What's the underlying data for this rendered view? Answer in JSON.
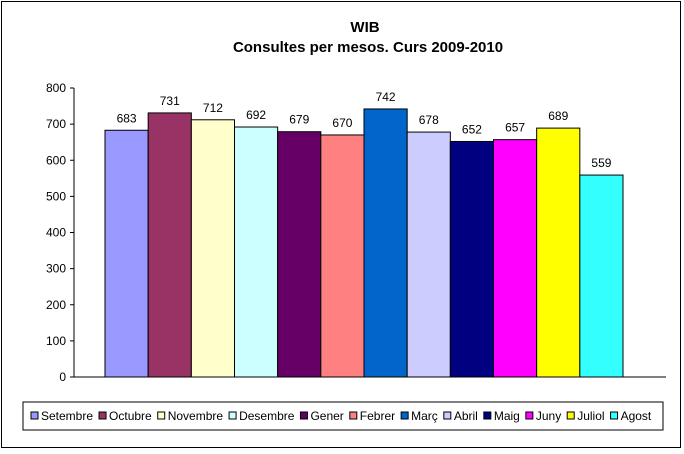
{
  "chart_data": {
    "type": "bar",
    "title": "WIB",
    "subtitle": "Consultes per mesos. Curs 2009-2010",
    "xlabel": "",
    "ylabel": "",
    "ylim": [
      0,
      800
    ],
    "yticks": [
      0,
      100,
      200,
      300,
      400,
      500,
      600,
      700,
      800
    ],
    "grid": false,
    "legend": "bottom",
    "series": [
      {
        "name": "Setembre",
        "value": 683,
        "color": "#9999FF"
      },
      {
        "name": "Octubre",
        "value": 731,
        "color": "#993366"
      },
      {
        "name": "Novembre",
        "value": 712,
        "color": "#FFFFCC"
      },
      {
        "name": "Desembre",
        "value": 692,
        "color": "#CCFFFF"
      },
      {
        "name": "Gener",
        "value": 679,
        "color": "#660066"
      },
      {
        "name": "Febrer",
        "value": 670,
        "color": "#FF8080"
      },
      {
        "name": "Març",
        "value": 742,
        "color": "#0066CC"
      },
      {
        "name": "Abril",
        "value": 678,
        "color": "#CCCCFF"
      },
      {
        "name": "Maig",
        "value": 652,
        "color": "#000080"
      },
      {
        "name": "Juny",
        "value": 657,
        "color": "#FF00FF"
      },
      {
        "name": "Juliol",
        "value": 689,
        "color": "#FFFF00"
      },
      {
        "name": "Agost",
        "value": 559,
        "color": "#33FFFF"
      }
    ]
  }
}
